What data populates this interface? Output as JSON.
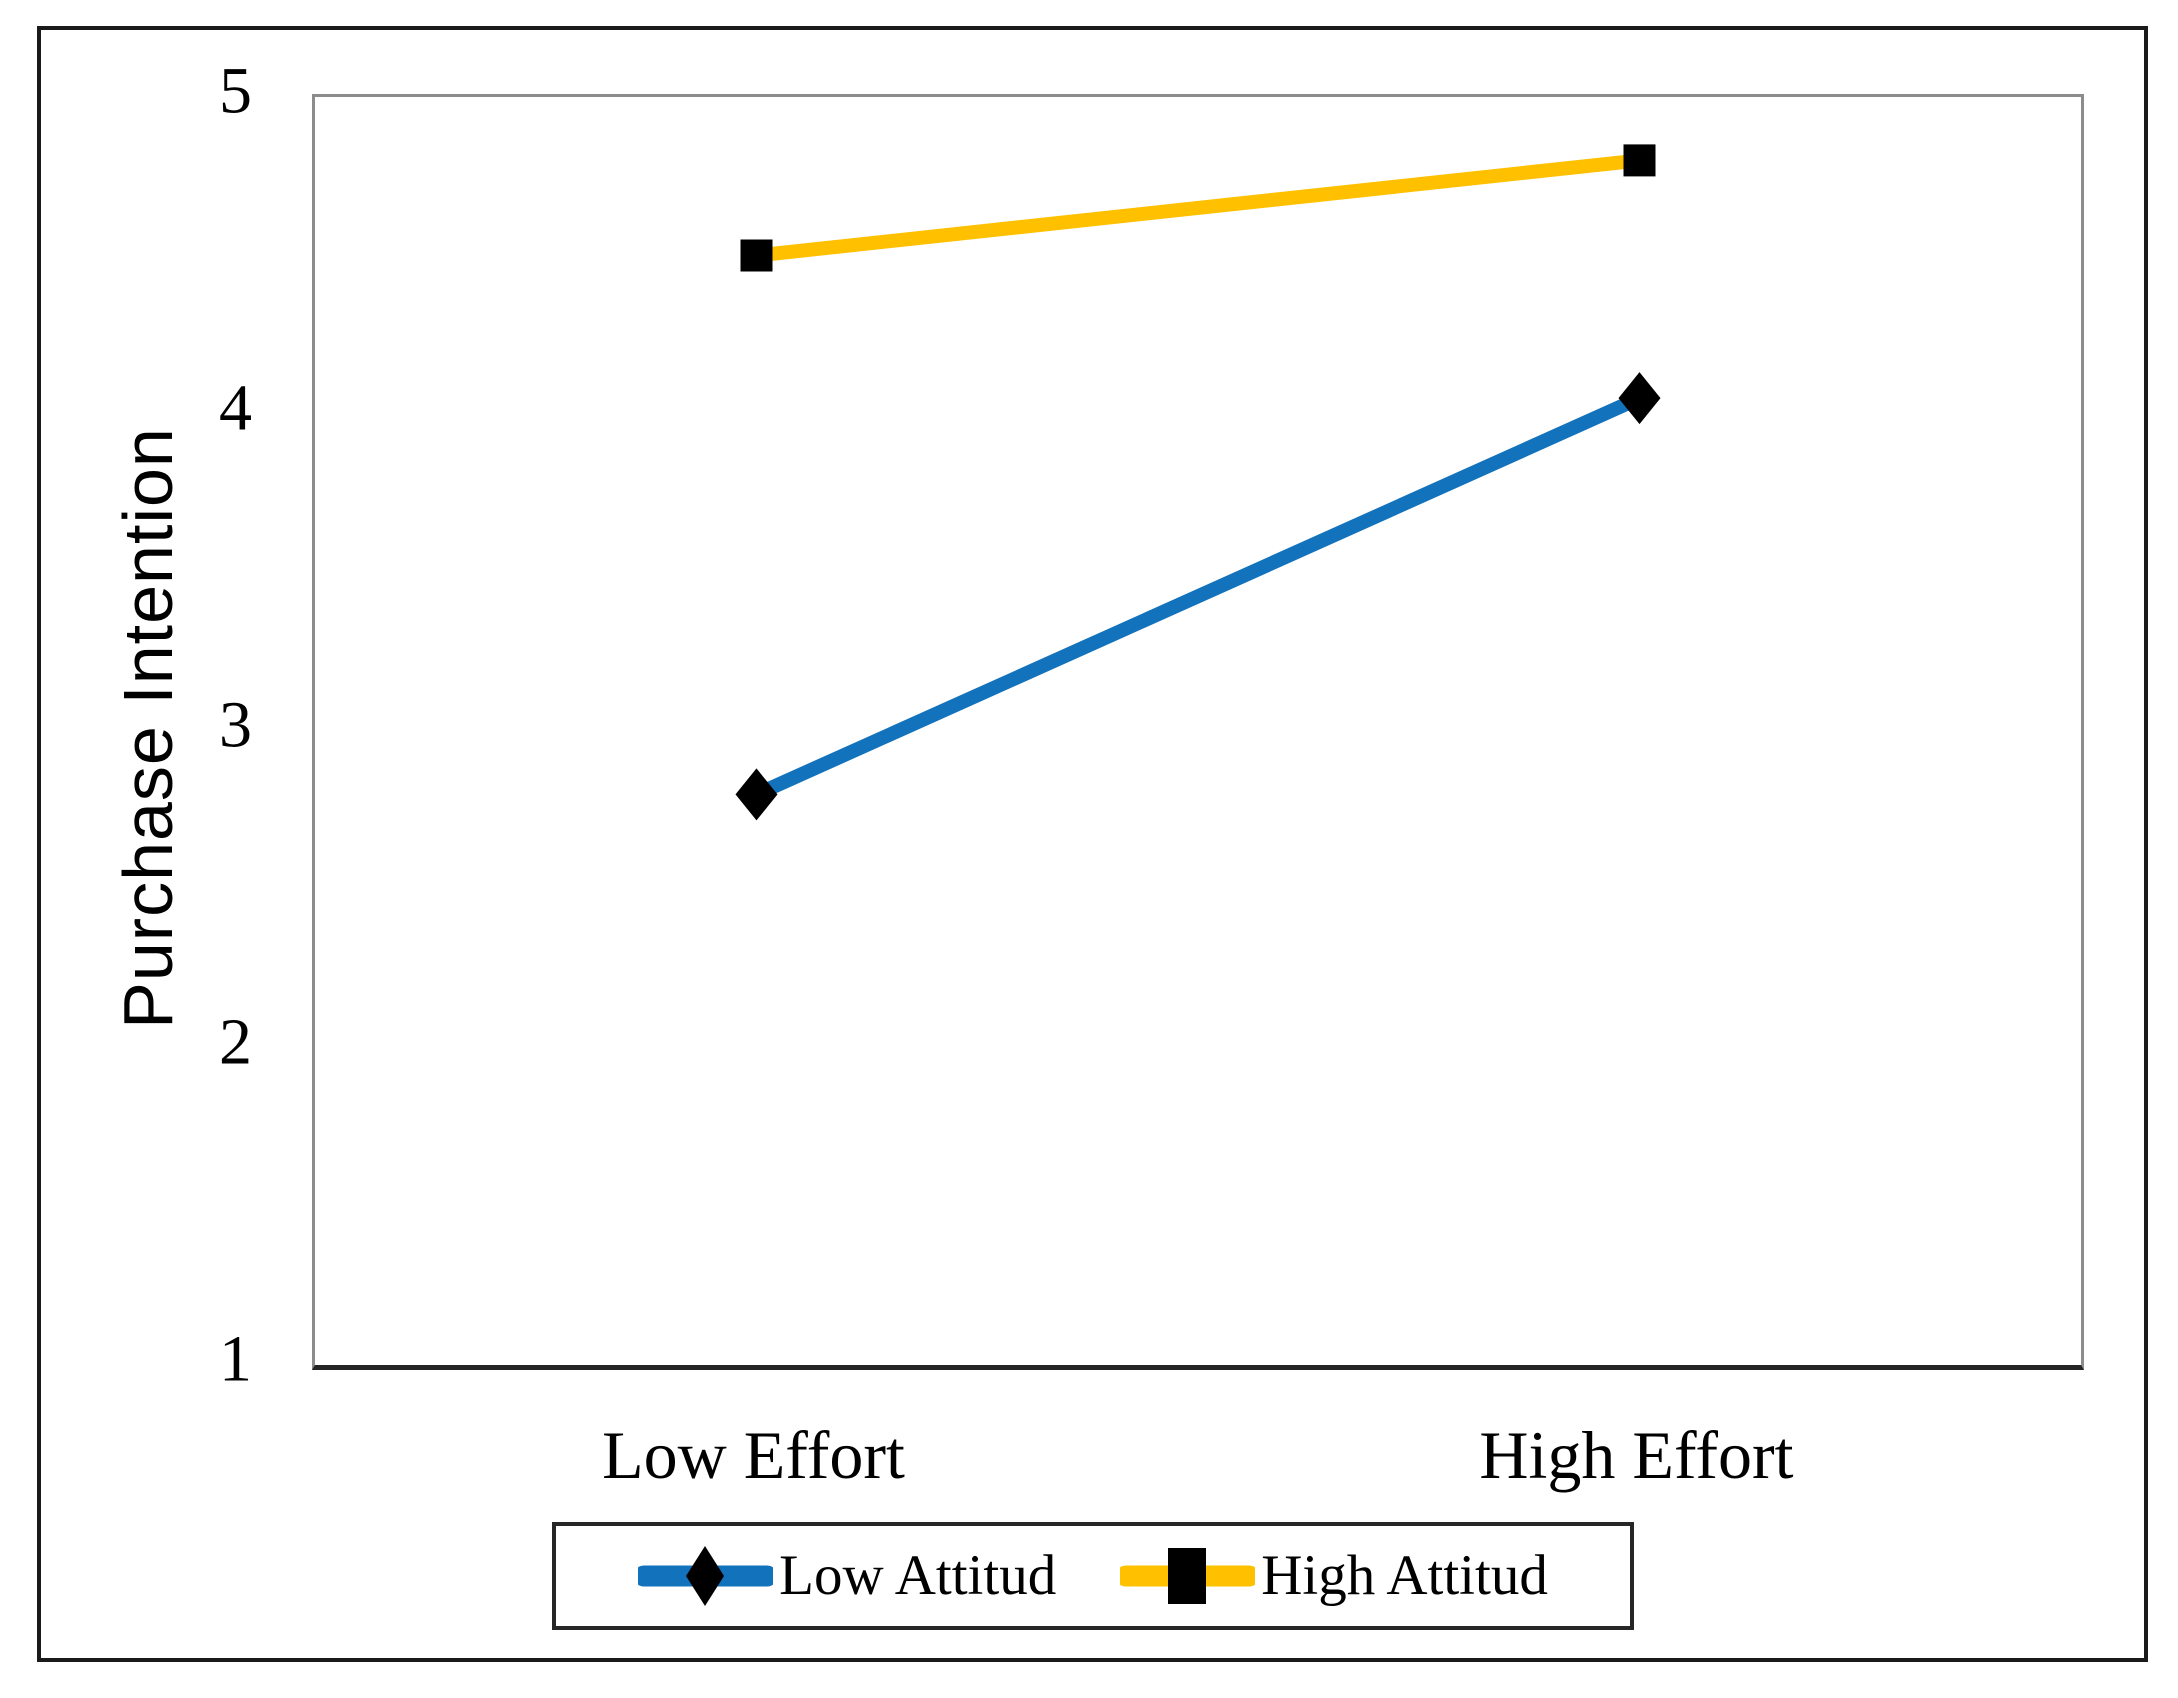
{
  "figure": {
    "background_color": "#ffffff",
    "outer_border_color": "#1a1a1a",
    "plot_border_color": "#8c8c8c",
    "axis_line_color": "#242424",
    "text_color": "#000000"
  },
  "chart_data": {
    "type": "line",
    "categories": [
      "Low Effort",
      "High Effort"
    ],
    "series": [
      {
        "name": "Low Attitud",
        "values": [
          2.8,
          4.05
        ],
        "color": "#1272BB",
        "marker": "diamond",
        "marker_color": "#000000"
      },
      {
        "name": "High Attitud",
        "values": [
          4.5,
          4.8
        ],
        "color": "#FFC000",
        "marker": "square",
        "marker_color": "#000000"
      }
    ],
    "xlabel": "",
    "ylabel": "Purchase Intention",
    "yticks": [
      1,
      2,
      3,
      4,
      5
    ],
    "ylim": [
      1,
      5
    ],
    "grid": false,
    "legend_position": "bottom"
  }
}
